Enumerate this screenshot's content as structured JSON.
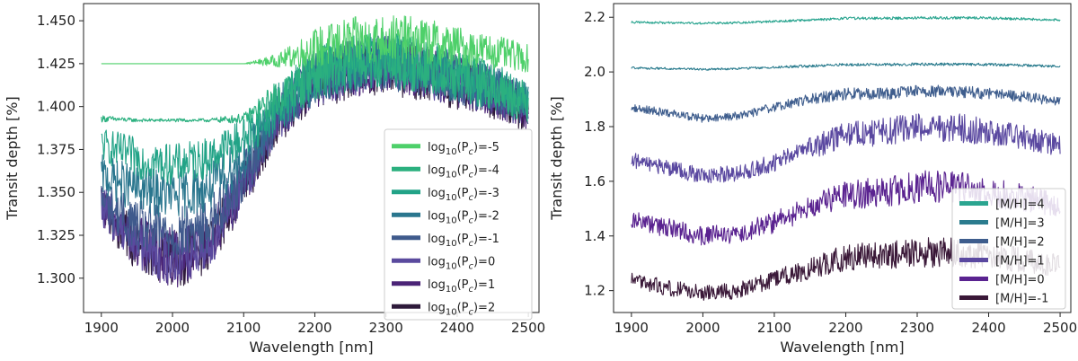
{
  "chart_data": [
    {
      "type": "line",
      "xlabel": "Wavelength [nm]",
      "ylabel": "Transit depth [%]",
      "xlim": [
        1875,
        2515
      ],
      "ylim": [
        1.28,
        1.46
      ],
      "xticks": [
        1900,
        2000,
        2100,
        2200,
        2300,
        2400,
        2500
      ],
      "xtick_labels": [
        "1900",
        "2000",
        "2100",
        "2200",
        "2300",
        "2400",
        "2500"
      ],
      "yticks": [
        1.3,
        1.325,
        1.35,
        1.375,
        1.4,
        1.425,
        1.45
      ],
      "ytick_labels": [
        "1.300",
        "1.325",
        "1.350",
        "1.375",
        "1.400",
        "1.425",
        "1.450"
      ],
      "legend_position": "lower-right",
      "grid": false,
      "x": [
        1900,
        1950,
        2000,
        2050,
        2100,
        2150,
        2200,
        2250,
        2300,
        2350,
        2400,
        2450,
        2500
      ],
      "series": [
        {
          "name": "log10(Pc)=-5",
          "legend_base": "log",
          "legend_sub": "10",
          "legend_tail": "(P",
          "legend_sub2": "c",
          "legend_end": ")=-5",
          "color": "#4ed06a",
          "values": [
            1.425,
            1.425,
            1.425,
            1.425,
            1.425,
            1.427,
            1.434,
            1.438,
            1.44,
            1.438,
            1.435,
            1.432,
            1.428
          ],
          "noise": [
            0.0,
            0.0,
            0.0,
            0.0,
            0.0,
            0.004,
            0.012,
            0.014,
            0.014,
            0.014,
            0.012,
            0.01,
            0.008
          ]
        },
        {
          "name": "log10(Pc)=-4",
          "legend_base": "log",
          "legend_sub": "10",
          "legend_tail": "(P",
          "legend_sub2": "c",
          "legend_end": ")=-4",
          "color": "#2bb07f",
          "values": [
            1.393,
            1.392,
            1.392,
            1.392,
            1.393,
            1.405,
            1.42,
            1.425,
            1.428,
            1.424,
            1.418,
            1.412,
            1.402
          ],
          "noise": [
            0.002,
            0.001,
            0.001,
            0.001,
            0.003,
            0.012,
            0.016,
            0.016,
            0.016,
            0.016,
            0.015,
            0.014,
            0.012
          ]
        },
        {
          "name": "log10(Pc)=-3",
          "legend_base": "log",
          "legend_sub": "10",
          "legend_tail": "(P",
          "legend_sub2": "c",
          "legend_end": ")=-3",
          "color": "#22a387",
          "values": [
            1.378,
            1.37,
            1.366,
            1.37,
            1.382,
            1.4,
            1.42,
            1.425,
            1.428,
            1.424,
            1.418,
            1.412,
            1.402
          ],
          "noise": [
            0.01,
            0.012,
            0.012,
            0.012,
            0.012,
            0.014,
            0.016,
            0.016,
            0.016,
            0.016,
            0.015,
            0.014,
            0.012
          ]
        },
        {
          "name": "log10(Pc)=-2",
          "legend_base": "log",
          "legend_sub": "10",
          "legend_tail": "(P",
          "legend_sub2": "c",
          "legend_end": ")=-2",
          "color": "#2a768e",
          "values": [
            1.36,
            1.352,
            1.348,
            1.352,
            1.37,
            1.398,
            1.418,
            1.424,
            1.427,
            1.423,
            1.417,
            1.411,
            1.401
          ],
          "noise": [
            0.012,
            0.014,
            0.014,
            0.014,
            0.014,
            0.014,
            0.016,
            0.016,
            0.016,
            0.016,
            0.015,
            0.014,
            0.012
          ]
        },
        {
          "name": "log10(Pc)=-1",
          "legend_base": "log",
          "legend_sub": "10",
          "legend_tail": "(P",
          "legend_sub2": "c",
          "legend_end": ")=-1",
          "color": "#3f5a8c",
          "values": [
            1.345,
            1.33,
            1.325,
            1.33,
            1.36,
            1.396,
            1.417,
            1.423,
            1.426,
            1.422,
            1.416,
            1.41,
            1.4
          ],
          "noise": [
            0.012,
            0.016,
            0.016,
            0.016,
            0.014,
            0.014,
            0.016,
            0.016,
            0.016,
            0.016,
            0.015,
            0.014,
            0.012
          ]
        },
        {
          "name": "log10(Pc)=0",
          "legend_base": "log",
          "legend_sub": "10",
          "legend_tail": "(P",
          "legend_sub2": "c",
          "legend_end": ")=0",
          "color": "#5a4a9e",
          "values": [
            1.342,
            1.322,
            1.312,
            1.32,
            1.355,
            1.395,
            1.416,
            1.422,
            1.425,
            1.421,
            1.415,
            1.409,
            1.399
          ],
          "noise": [
            0.012,
            0.016,
            0.018,
            0.016,
            0.014,
            0.014,
            0.016,
            0.016,
            0.016,
            0.016,
            0.015,
            0.014,
            0.012
          ]
        },
        {
          "name": "log10(Pc)=1",
          "legend_base": "log",
          "legend_sub": "10",
          "legend_tail": "(P",
          "legend_sub2": "c",
          "legend_end": ")=1",
          "color": "#4b2477",
          "values": [
            1.341,
            1.321,
            1.311,
            1.319,
            1.354,
            1.394,
            1.415,
            1.421,
            1.424,
            1.42,
            1.414,
            1.408,
            1.398
          ],
          "noise": [
            0.012,
            0.016,
            0.018,
            0.016,
            0.014,
            0.014,
            0.016,
            0.016,
            0.016,
            0.016,
            0.015,
            0.014,
            0.012
          ]
        },
        {
          "name": "log10(Pc)=2",
          "legend_base": "log",
          "legend_sub": "10",
          "legend_tail": "(P",
          "legend_sub2": "c",
          "legend_end": ")=2",
          "color": "#2e1a3a",
          "values": [
            1.34,
            1.32,
            1.31,
            1.318,
            1.353,
            1.393,
            1.414,
            1.42,
            1.423,
            1.419,
            1.413,
            1.407,
            1.397
          ],
          "noise": [
            0.012,
            0.016,
            0.018,
            0.016,
            0.014,
            0.014,
            0.016,
            0.016,
            0.016,
            0.016,
            0.015,
            0.014,
            0.012
          ]
        }
      ]
    },
    {
      "type": "line",
      "xlabel": "Wavelength [nm]",
      "ylabel": "Transit depth [%]",
      "xlim": [
        1875,
        2515
      ],
      "ylim": [
        1.12,
        2.25
      ],
      "xticks": [
        1900,
        2000,
        2100,
        2200,
        2300,
        2400,
        2500
      ],
      "xtick_labels": [
        "1900",
        "2000",
        "2100",
        "2200",
        "2300",
        "2400",
        "2500"
      ],
      "yticks": [
        1.2,
        1.4,
        1.6,
        1.8,
        2.0,
        2.2
      ],
      "ytick_labels": [
        "1.2",
        "1.4",
        "1.6",
        "1.8",
        "2.0",
        "2.2"
      ],
      "legend_position": "lower-right",
      "grid": false,
      "x": [
        1900,
        1950,
        2000,
        2050,
        2100,
        2150,
        2200,
        2250,
        2300,
        2350,
        2400,
        2450,
        2500
      ],
      "series": [
        {
          "name": "[M/H]=4",
          "legend_text": "[M/H]=4",
          "color": "#2ba590",
          "values": [
            2.182,
            2.18,
            2.178,
            2.18,
            2.185,
            2.19,
            2.196,
            2.196,
            2.198,
            2.198,
            2.197,
            2.194,
            2.19
          ],
          "noise": [
            0.004,
            0.004,
            0.004,
            0.004,
            0.004,
            0.004,
            0.005,
            0.005,
            0.005,
            0.005,
            0.005,
            0.005,
            0.004
          ]
        },
        {
          "name": "[M/H]=3",
          "legend_text": "[M/H]=3",
          "color": "#2b7c8e",
          "values": [
            2.015,
            2.012,
            2.01,
            2.012,
            2.017,
            2.022,
            2.027,
            2.027,
            2.028,
            2.028,
            2.027,
            2.024,
            2.02
          ],
          "noise": [
            0.004,
            0.004,
            0.004,
            0.004,
            0.004,
            0.005,
            0.005,
            0.005,
            0.005,
            0.005,
            0.005,
            0.005,
            0.004
          ]
        },
        {
          "name": "[M/H]=2",
          "legend_text": "[M/H]=2",
          "color": "#3e5d8d",
          "values": [
            1.87,
            1.85,
            1.83,
            1.84,
            1.87,
            1.9,
            1.92,
            1.92,
            1.93,
            1.93,
            1.92,
            1.91,
            1.89
          ],
          "noise": [
            0.015,
            0.015,
            0.015,
            0.015,
            0.018,
            0.02,
            0.022,
            0.022,
            0.022,
            0.022,
            0.022,
            0.02,
            0.018
          ]
        },
        {
          "name": "[M/H]=1",
          "legend_text": "[M/H]=1",
          "color": "#5a48a0",
          "values": [
            1.68,
            1.65,
            1.62,
            1.63,
            1.67,
            1.72,
            1.77,
            1.78,
            1.8,
            1.8,
            1.78,
            1.76,
            1.73
          ],
          "noise": [
            0.03,
            0.03,
            0.03,
            0.03,
            0.035,
            0.04,
            0.05,
            0.05,
            0.055,
            0.055,
            0.05,
            0.045,
            0.04
          ]
        },
        {
          "name": "[M/H]=0",
          "legend_text": "[M/H]=0",
          "color": "#5a2390",
          "values": [
            1.46,
            1.43,
            1.4,
            1.41,
            1.45,
            1.5,
            1.55,
            1.56,
            1.58,
            1.58,
            1.56,
            1.54,
            1.51
          ],
          "noise": [
            0.035,
            0.035,
            0.035,
            0.035,
            0.04,
            0.045,
            0.055,
            0.055,
            0.06,
            0.06,
            0.055,
            0.05,
            0.045
          ]
        },
        {
          "name": "[M/H]=-1",
          "legend_text": "[M/H]=-1",
          "color": "#3a1838",
          "values": [
            1.24,
            1.21,
            1.19,
            1.2,
            1.24,
            1.28,
            1.32,
            1.33,
            1.34,
            1.34,
            1.33,
            1.31,
            1.29
          ],
          "noise": [
            0.03,
            0.03,
            0.03,
            0.03,
            0.035,
            0.04,
            0.05,
            0.05,
            0.055,
            0.055,
            0.05,
            0.045,
            0.04
          ]
        }
      ]
    }
  ]
}
